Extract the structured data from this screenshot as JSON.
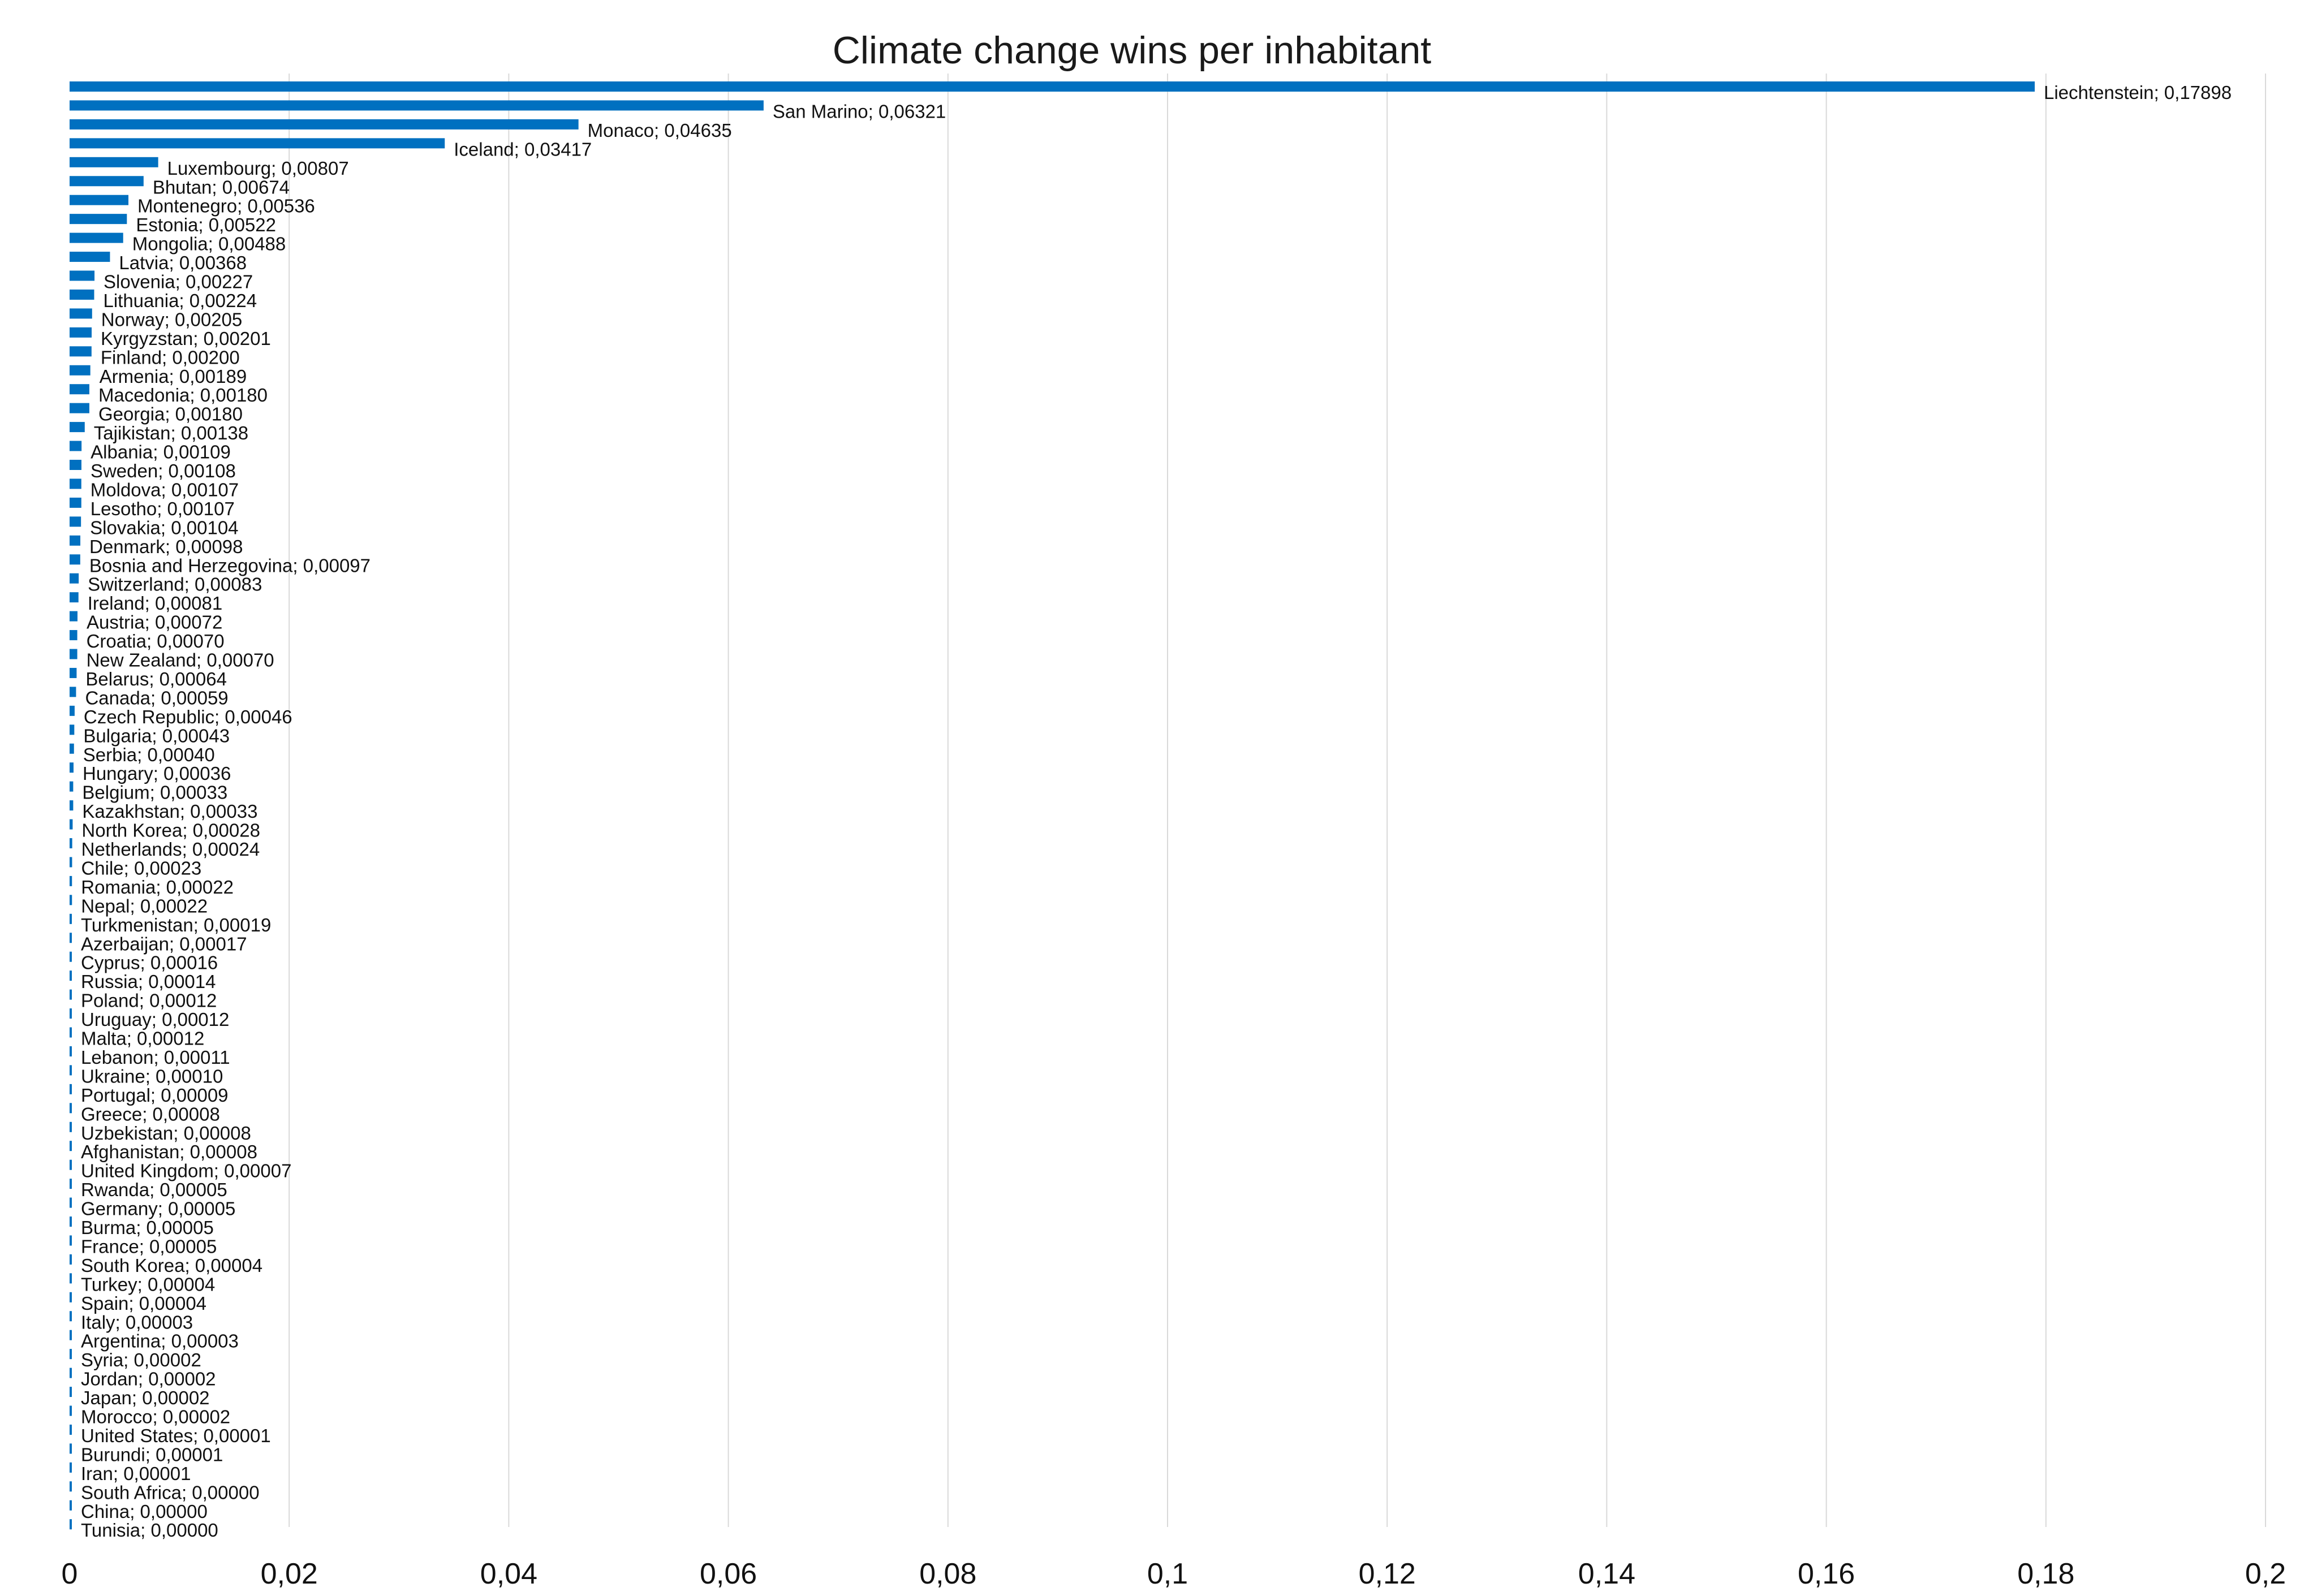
{
  "chart_data": {
    "type": "bar",
    "orientation": "horizontal",
    "title": "Climate change wins per inhabitant",
    "xlabel": "",
    "ylabel": "",
    "xlim": [
      0,
      0.2
    ],
    "x_ticks": [
      0,
      0.02,
      0.04,
      0.06,
      0.08,
      0.1,
      0.12,
      0.14,
      0.16,
      0.18,
      0.2
    ],
    "x_tick_labels": [
      "0",
      "0,02",
      "0,04",
      "0,06",
      "0,08",
      "0,1",
      "0,12",
      "0,14",
      "0,16",
      "0,18",
      "0,2"
    ],
    "grid": "vertical",
    "legend": "none",
    "bar_color": "#0070c0",
    "categories": [
      "Liechtenstein",
      "San Marino",
      "Monaco",
      "Iceland",
      "Luxembourg",
      "Bhutan",
      "Montenegro",
      "Estonia",
      "Mongolia",
      "Latvia",
      "Slovenia",
      "Lithuania",
      "Norway",
      "Kyrgyzstan",
      "Finland",
      "Armenia",
      "Macedonia",
      "Georgia",
      "Tajikistan",
      "Albania",
      "Sweden",
      "Moldova",
      "Lesotho",
      "Slovakia",
      "Denmark",
      "Bosnia and Herzegovina",
      "Switzerland",
      "Ireland",
      "Austria",
      "Croatia",
      "New Zealand",
      "Belarus",
      "Canada",
      "Czech Republic",
      "Bulgaria",
      "Serbia",
      "Hungary",
      "Belgium",
      "Kazakhstan",
      "North Korea",
      "Netherlands",
      "Chile",
      "Romania",
      "Nepal",
      "Turkmenistan",
      "Azerbaijan",
      "Cyprus",
      "Russia",
      "Poland",
      "Uruguay",
      "Malta",
      "Lebanon",
      "Ukraine",
      "Portugal",
      "Greece",
      "Uzbekistan",
      "Afghanistan",
      "United Kingdom",
      "Rwanda",
      "Germany",
      "Burma",
      "France",
      "South Korea",
      "Turkey",
      "Spain",
      "Italy",
      "Argentina",
      "Syria",
      "Jordan",
      "Japan",
      "Morocco",
      "United States",
      "Burundi",
      "Iran",
      "South Africa",
      "China",
      "Tunisia"
    ],
    "values": [
      0.17898,
      0.06321,
      0.04635,
      0.03417,
      0.00807,
      0.00674,
      0.00536,
      0.00522,
      0.00488,
      0.00368,
      0.00227,
      0.00224,
      0.00205,
      0.00201,
      0.002,
      0.00189,
      0.0018,
      0.0018,
      0.00138,
      0.00109,
      0.00108,
      0.00107,
      0.00107,
      0.00104,
      0.00098,
      0.00097,
      0.00083,
      0.00081,
      0.00072,
      0.0007,
      0.0007,
      0.00064,
      0.00059,
      0.00046,
      0.00043,
      0.0004,
      0.00036,
      0.00033,
      0.00033,
      0.00028,
      0.00024,
      0.00023,
      0.00022,
      0.00022,
      0.00019,
      0.00017,
      0.00016,
      0.00014,
      0.00012,
      0.00012,
      0.00012,
      0.00011,
      0.0001,
      9e-05,
      8e-05,
      8e-05,
      8e-05,
      7e-05,
      5e-05,
      5e-05,
      5e-05,
      5e-05,
      4e-05,
      4e-05,
      4e-05,
      3e-05,
      3e-05,
      2e-05,
      2e-05,
      2e-05,
      2e-05,
      1e-05,
      1e-05,
      1e-05,
      0.0,
      0.0,
      0.0
    ],
    "data_labels": [
      "Liechtenstein; 0,17898",
      "San Marino; 0,06321",
      "Monaco; 0,04635",
      "Iceland; 0,03417",
      "Luxembourg; 0,00807",
      "Bhutan; 0,00674",
      "Montenegro; 0,00536",
      "Estonia; 0,00522",
      "Mongolia; 0,00488",
      "Latvia; 0,00368",
      "Slovenia; 0,00227",
      "Lithuania; 0,00224",
      "Norway; 0,00205",
      "Kyrgyzstan; 0,00201",
      "Finland; 0,00200",
      "Armenia; 0,00189",
      "Macedonia; 0,00180",
      "Georgia; 0,00180",
      "Tajikistan; 0,00138",
      "Albania; 0,00109",
      "Sweden; 0,00108",
      "Moldova; 0,00107",
      "Lesotho; 0,00107",
      "Slovakia; 0,00104",
      "Denmark; 0,00098",
      "Bosnia and Herzegovina; 0,00097",
      "Switzerland; 0,00083",
      "Ireland; 0,00081",
      "Austria; 0,00072",
      "Croatia; 0,00070",
      "New Zealand; 0,00070",
      "Belarus; 0,00064",
      "Canada; 0,00059",
      "Czech Republic; 0,00046",
      "Bulgaria; 0,00043",
      "Serbia; 0,00040",
      "Hungary; 0,00036",
      "Belgium; 0,00033",
      "Kazakhstan; 0,00033",
      "North Korea; 0,00028",
      "Netherlands; 0,00024",
      "Chile; 0,00023",
      "Romania; 0,00022",
      "Nepal; 0,00022",
      "Turkmenistan; 0,00019",
      "Azerbaijan; 0,00017",
      "Cyprus; 0,00016",
      "Russia; 0,00014",
      "Poland; 0,00012",
      "Uruguay; 0,00012",
      "Malta; 0,00012",
      "Lebanon; 0,00011",
      "Ukraine; 0,00010",
      "Portugal; 0,00009",
      "Greece; 0,00008",
      "Uzbekistan; 0,00008",
      "Afghanistan; 0,00008",
      "United Kingdom; 0,00007",
      "Rwanda; 0,00005",
      "Germany; 0,00005",
      "Burma; 0,00005",
      "France; 0,00005",
      "South Korea; 0,00004",
      "Turkey; 0,00004",
      "Spain; 0,00004",
      "Italy; 0,00003",
      "Argentina; 0,00003",
      "Syria; 0,00002",
      "Jordan; 0,00002",
      "Japan; 0,00002",
      "Morocco; 0,00002",
      "United States; 0,00001",
      "Burundi; 0,00001",
      "Iran; 0,00001",
      "South Africa; 0,00000",
      "China; 0,00000",
      "Tunisia; 0,00000"
    ]
  }
}
